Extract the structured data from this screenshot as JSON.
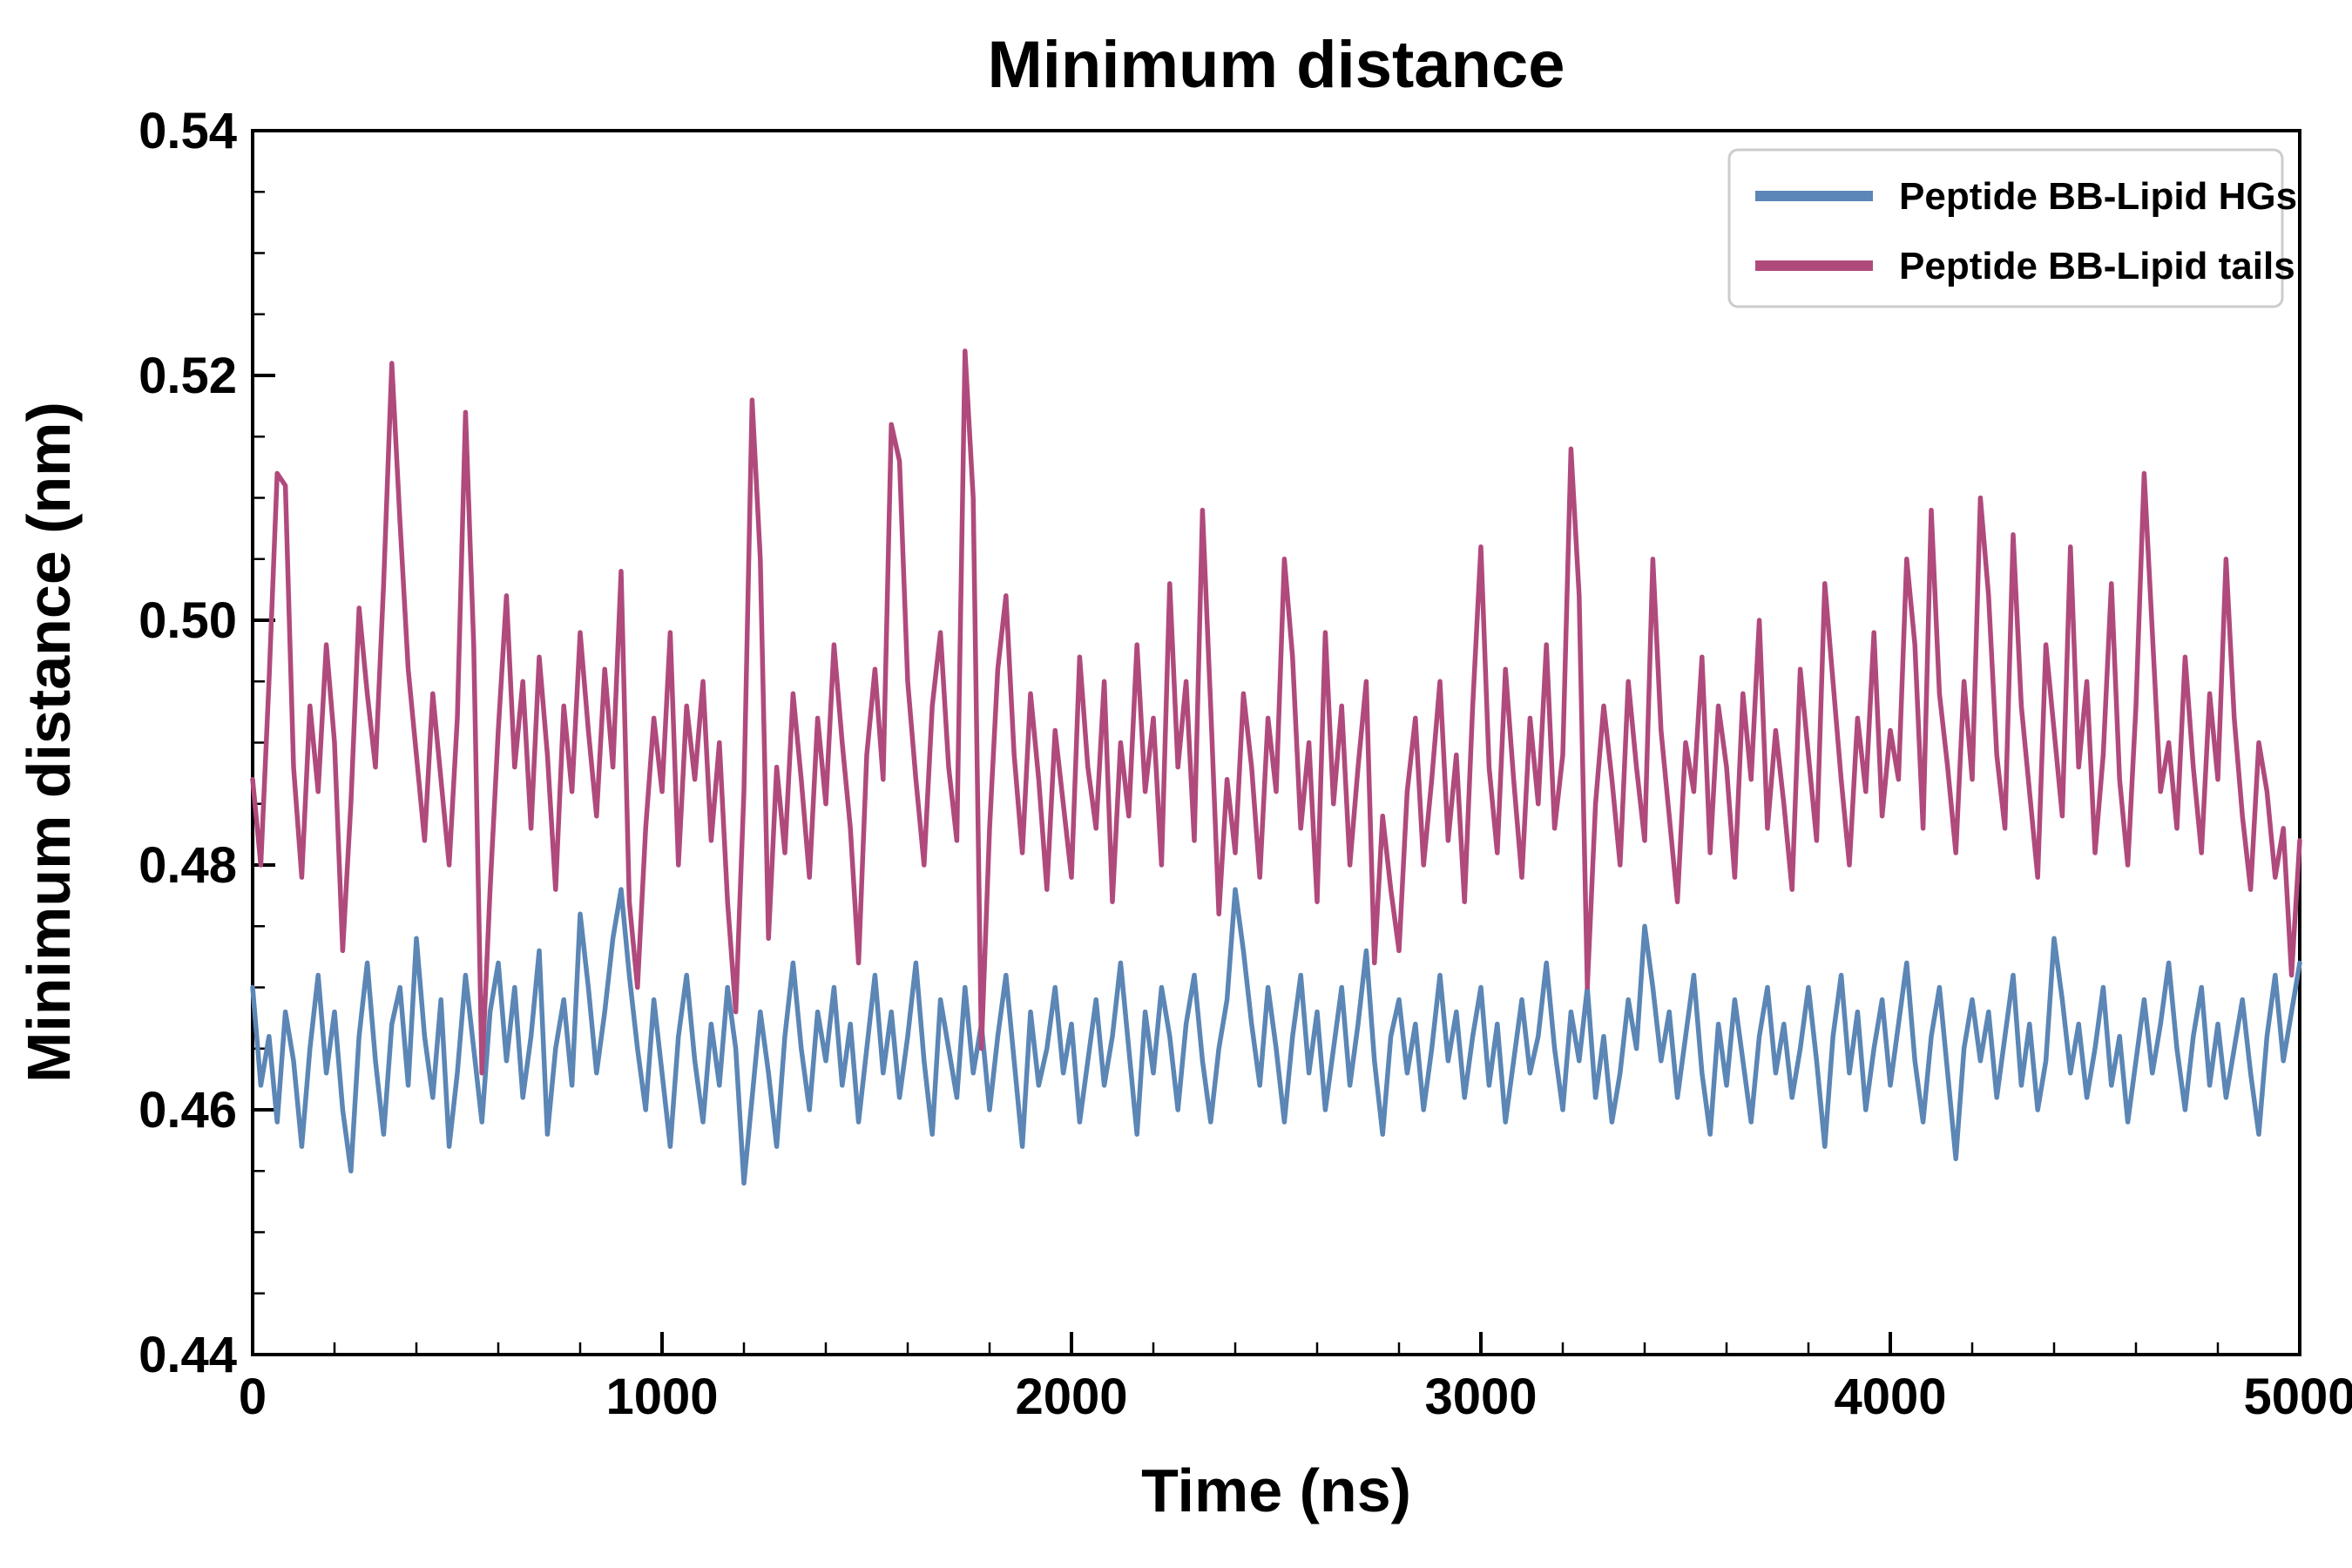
{
  "chart_data": {
    "type": "line",
    "title": "Minimum distance",
    "xlabel": "Time (ns)",
    "ylabel": "Minimum distance (nm)",
    "xlim": [
      0,
      5000
    ],
    "ylim": [
      0.44,
      0.54
    ],
    "x_ticks": [
      0,
      1000,
      2000,
      3000,
      4000,
      5000
    ],
    "y_ticks": [
      0.44,
      0.46,
      0.48,
      0.5,
      0.52,
      0.54
    ],
    "x_minor_step": 200,
    "y_minor_step": 0.005,
    "grid": false,
    "legend_position": "upper right",
    "series": [
      {
        "name": "Peptide BB-Lipid HGs",
        "color": "#5b86b5",
        "x_start": 0,
        "x_step": 20,
        "values": [
          0.47,
          0.462,
          0.466,
          0.459,
          0.468,
          0.464,
          0.457,
          0.465,
          0.471,
          0.463,
          0.468,
          0.46,
          0.455,
          0.466,
          0.472,
          0.464,
          0.458,
          0.467,
          0.47,
          0.462,
          0.474,
          0.466,
          0.461,
          0.469,
          0.457,
          0.463,
          0.471,
          0.465,
          0.459,
          0.468,
          0.472,
          0.464,
          0.47,
          0.461,
          0.466,
          0.473,
          0.458,
          0.465,
          0.469,
          0.462,
          0.476,
          0.47,
          0.463,
          0.468,
          0.474,
          0.478,
          0.471,
          0.465,
          0.46,
          0.469,
          0.463,
          0.457,
          0.466,
          0.471,
          0.464,
          0.459,
          0.467,
          0.462,
          0.47,
          0.465,
          0.454,
          0.461,
          0.468,
          0.463,
          0.457,
          0.466,
          0.472,
          0.465,
          0.46,
          0.468,
          0.464,
          0.47,
          0.462,
          0.467,
          0.459,
          0.465,
          0.471,
          0.463,
          0.468,
          0.461,
          0.466,
          0.472,
          0.464,
          0.458,
          0.469,
          0.465,
          0.461,
          0.47,
          0.463,
          0.467,
          0.46,
          0.466,
          0.471,
          0.464,
          0.457,
          0.468,
          0.462,
          0.465,
          0.47,
          0.463,
          0.467,
          0.459,
          0.464,
          0.469,
          0.462,
          0.466,
          0.472,
          0.465,
          0.458,
          0.468,
          0.463,
          0.47,
          0.466,
          0.46,
          0.467,
          0.471,
          0.464,
          0.459,
          0.465,
          0.469,
          0.478,
          0.473,
          0.467,
          0.462,
          0.47,
          0.465,
          0.459,
          0.466,
          0.471,
          0.463,
          0.468,
          0.46,
          0.465,
          0.47,
          0.462,
          0.467,
          0.473,
          0.464,
          0.458,
          0.466,
          0.469,
          0.463,
          0.467,
          0.46,
          0.465,
          0.471,
          0.464,
          0.468,
          0.461,
          0.466,
          0.47,
          0.462,
          0.467,
          0.459,
          0.464,
          0.469,
          0.463,
          0.466,
          0.472,
          0.465,
          0.46,
          0.468,
          0.464,
          0.47,
          0.461,
          0.466,
          0.459,
          0.463,
          0.469,
          0.465,
          0.475,
          0.47,
          0.464,
          0.468,
          0.461,
          0.466,
          0.471,
          0.463,
          0.458,
          0.467,
          0.462,
          0.469,
          0.464,
          0.459,
          0.466,
          0.47,
          0.463,
          0.467,
          0.461,
          0.465,
          0.47,
          0.464,
          0.457,
          0.466,
          0.471,
          0.463,
          0.468,
          0.46,
          0.465,
          0.469,
          0.462,
          0.467,
          0.472,
          0.464,
          0.459,
          0.466,
          0.47,
          0.463,
          0.456,
          0.465,
          0.469,
          0.464,
          0.468,
          0.461,
          0.466,
          0.471,
          0.462,
          0.467,
          0.46,
          0.464,
          0.474,
          0.469,
          0.463,
          0.467,
          0.461,
          0.465,
          0.47,
          0.462,
          0.466,
          0.459,
          0.464,
          0.469,
          0.463,
          0.467,
          0.472,
          0.465,
          0.46,
          0.466,
          0.47,
          0.462,
          0.467,
          0.461,
          0.465,
          0.469,
          0.463,
          0.458,
          0.466,
          0.471,
          0.464,
          0.468,
          0.472
        ]
      },
      {
        "name": "Peptide BB-Lipid tails",
        "color": "#b04a7c",
        "x_start": 0,
        "x_step": 20,
        "values": [
          0.487,
          0.48,
          0.495,
          0.512,
          0.511,
          0.488,
          0.479,
          0.493,
          0.486,
          0.498,
          0.49,
          0.473,
          0.485,
          0.501,
          0.494,
          0.488,
          0.503,
          0.521,
          0.508,
          0.496,
          0.489,
          0.482,
          0.494,
          0.487,
          0.48,
          0.492,
          0.517,
          0.498,
          0.463,
          0.478,
          0.491,
          0.502,
          0.488,
          0.495,
          0.483,
          0.497,
          0.489,
          0.478,
          0.493,
          0.486,
          0.499,
          0.491,
          0.484,
          0.496,
          0.488,
          0.504,
          0.477,
          0.47,
          0.483,
          0.492,
          0.486,
          0.499,
          0.48,
          0.493,
          0.487,
          0.495,
          0.482,
          0.49,
          0.477,
          0.468,
          0.486,
          0.518,
          0.505,
          0.474,
          0.488,
          0.481,
          0.494,
          0.487,
          0.479,
          0.492,
          0.485,
          0.498,
          0.49,
          0.483,
          0.472,
          0.489,
          0.496,
          0.487,
          0.516,
          0.513,
          0.495,
          0.487,
          0.48,
          0.493,
          0.499,
          0.488,
          0.482,
          0.522,
          0.51,
          0.465,
          0.483,
          0.496,
          0.502,
          0.489,
          0.481,
          0.494,
          0.487,
          0.478,
          0.491,
          0.485,
          0.479,
          0.497,
          0.488,
          0.483,
          0.495,
          0.477,
          0.49,
          0.484,
          0.498,
          0.486,
          0.492,
          0.48,
          0.503,
          0.488,
          0.495,
          0.482,
          0.509,
          0.493,
          0.476,
          0.487,
          0.481,
          0.494,
          0.488,
          0.479,
          0.492,
          0.486,
          0.505,
          0.497,
          0.483,
          0.49,
          0.477,
          0.499,
          0.485,
          0.493,
          0.48,
          0.488,
          0.495,
          0.472,
          0.484,
          0.478,
          0.473,
          0.486,
          0.492,
          0.48,
          0.487,
          0.495,
          0.482,
          0.489,
          0.477,
          0.493,
          0.506,
          0.488,
          0.481,
          0.496,
          0.487,
          0.479,
          0.492,
          0.485,
          0.498,
          0.483,
          0.489,
          0.514,
          0.502,
          0.47,
          0.485,
          0.493,
          0.487,
          0.48,
          0.495,
          0.488,
          0.482,
          0.505,
          0.491,
          0.484,
          0.477,
          0.49,
          0.486,
          0.497,
          0.481,
          0.493,
          0.488,
          0.479,
          0.494,
          0.487,
          0.5,
          0.483,
          0.491,
          0.485,
          0.478,
          0.496,
          0.489,
          0.482,
          0.503,
          0.495,
          0.487,
          0.48,
          0.492,
          0.486,
          0.499,
          0.484,
          0.491,
          0.487,
          0.505,
          0.498,
          0.483,
          0.509,
          0.494,
          0.488,
          0.481,
          0.495,
          0.487,
          0.51,
          0.502,
          0.489,
          0.483,
          0.507,
          0.493,
          0.486,
          0.479,
          0.498,
          0.491,
          0.484,
          0.506,
          0.488,
          0.495,
          0.481,
          0.489,
          0.503,
          0.487,
          0.48,
          0.493,
          0.512,
          0.499,
          0.486,
          0.49,
          0.483,
          0.497,
          0.488,
          0.481,
          0.494,
          0.487,
          0.505,
          0.492,
          0.484,
          0.478,
          0.49,
          0.486,
          0.479,
          0.483,
          0.471,
          0.482
        ]
      }
    ]
  }
}
